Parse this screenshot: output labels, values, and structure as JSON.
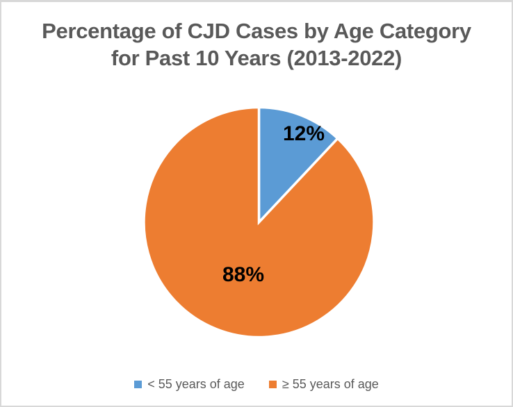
{
  "chart_data": {
    "type": "pie",
    "title": "Percentage of CJD Cases by Age Category for Past 10 Years (2013-2022)",
    "title_lines": [
      "Percentage of CJD Cases by Age Category",
      "for Past 10 Years (2013-2022)"
    ],
    "categories": [
      "< 55 years of age",
      "≥ 55 years of age"
    ],
    "values": [
      12,
      88
    ],
    "data_labels": [
      "12%",
      "88%"
    ],
    "unit": "percent",
    "colors": [
      "#5B9BD5",
      "#ED7D31"
    ],
    "slice_border_color": "#FFFFFF",
    "start_angle_deg": 0,
    "direction": "clockwise",
    "legend_position": "bottom"
  },
  "styles": {
    "title_color": "#595959",
    "legend_text_color": "#595959",
    "data_label_color": "#000000",
    "background": "#FFFFFF",
    "frame_border_color": "#D8D8D8"
  }
}
